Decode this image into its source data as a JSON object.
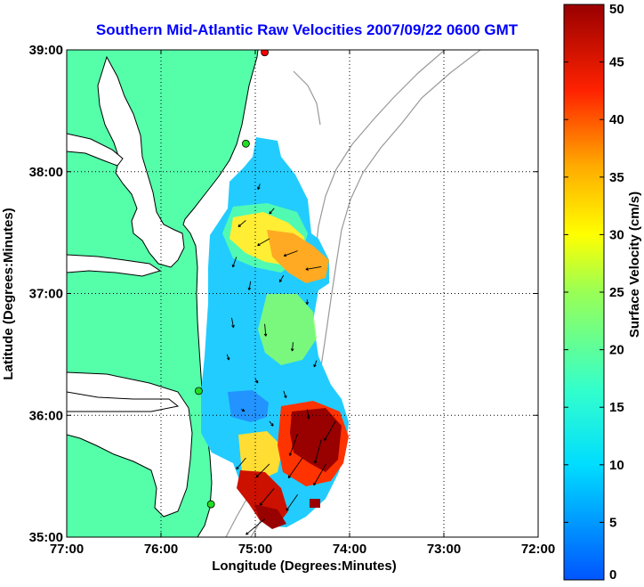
{
  "chart_data": [
    {
      "type": "heatmap",
      "title": "Southern Mid-Atlantic Raw Velocities 2007/09/22 0600 GMT",
      "xlabel": "Longitude (Degrees:Minutes)",
      "ylabel": "Latitude (Degrees:Minutes)",
      "xlim": [
        -77,
        -72
      ],
      "ylim": [
        35,
        39
      ],
      "x_ticks": [
        -77,
        -76,
        -75,
        -74,
        -73,
        -72
      ],
      "x_tick_labels": [
        "77:00",
        "76:00",
        "75:00",
        "74:00",
        "73:00",
        "72:00"
      ],
      "y_ticks": [
        35,
        36,
        37,
        38,
        39
      ],
      "y_tick_labels": [
        "35:00",
        "36:00",
        "37:00",
        "38:00",
        "39:00"
      ],
      "grid": true,
      "land_color": "#55ffaa",
      "contour_color": "#999999",
      "vector_color": "#000000",
      "stations": [
        {
          "lon": -74.9,
          "lat": 38.98,
          "color": "#ff0000"
        },
        {
          "lon": -75.1,
          "lat": 38.23,
          "color": "#22dd22"
        },
        {
          "lon": -75.6,
          "lat": 36.2,
          "color": "#22dd22"
        },
        {
          "lon": -75.47,
          "lat": 35.27,
          "color": "#22dd22"
        }
      ],
      "velocity_field": [
        {
          "lon": -74.95,
          "lat": 37.9,
          "speed": 12,
          "dir": 200
        },
        {
          "lon": -74.8,
          "lat": 37.7,
          "speed": 15,
          "dir": 220
        },
        {
          "lon": -75.1,
          "lat": 37.6,
          "speed": 20,
          "dir": 230
        },
        {
          "lon": -74.85,
          "lat": 37.45,
          "speed": 28,
          "dir": 240
        },
        {
          "lon": -74.55,
          "lat": 37.35,
          "speed": 30,
          "dir": 250
        },
        {
          "lon": -74.3,
          "lat": 37.22,
          "speed": 32,
          "dir": 260
        },
        {
          "lon": -75.2,
          "lat": 37.3,
          "speed": 22,
          "dir": 200
        },
        {
          "lon": -75.05,
          "lat": 37.1,
          "speed": 18,
          "dir": 190
        },
        {
          "lon": -74.7,
          "lat": 37.15,
          "speed": 16,
          "dir": 210
        },
        {
          "lon": -74.45,
          "lat": 36.95,
          "speed": 10,
          "dir": 180
        },
        {
          "lon": -75.25,
          "lat": 36.8,
          "speed": 20,
          "dir": 170
        },
        {
          "lon": -74.9,
          "lat": 36.75,
          "speed": 25,
          "dir": 175
        },
        {
          "lon": -74.6,
          "lat": 36.6,
          "speed": 18,
          "dir": 185
        },
        {
          "lon": -74.35,
          "lat": 36.45,
          "speed": 14,
          "dir": 200
        },
        {
          "lon": -75.3,
          "lat": 36.5,
          "speed": 12,
          "dir": 160
        },
        {
          "lon": -75.0,
          "lat": 36.3,
          "speed": 10,
          "dir": 150
        },
        {
          "lon": -74.7,
          "lat": 36.2,
          "speed": 15,
          "dir": 160
        },
        {
          "lon": -74.45,
          "lat": 36.05,
          "speed": 20,
          "dir": 170
        },
        {
          "lon": -75.15,
          "lat": 36.05,
          "speed": 8,
          "dir": 120
        },
        {
          "lon": -74.85,
          "lat": 35.95,
          "speed": 12,
          "dir": 140
        },
        {
          "lon": -74.55,
          "lat": 35.85,
          "speed": 48,
          "dir": 200
        },
        {
          "lon": -74.3,
          "lat": 35.8,
          "speed": 50,
          "dir": 195
        },
        {
          "lon": -74.15,
          "lat": 35.95,
          "speed": 45,
          "dir": 210
        },
        {
          "lon": -74.5,
          "lat": 35.65,
          "speed": 50,
          "dir": 215
        },
        {
          "lon": -74.25,
          "lat": 35.6,
          "speed": 50,
          "dir": 210
        },
        {
          "lon": -75.1,
          "lat": 35.65,
          "speed": 30,
          "dir": 220
        },
        {
          "lon": -74.85,
          "lat": 35.6,
          "speed": 38,
          "dir": 225
        },
        {
          "lon": -74.8,
          "lat": 35.4,
          "speed": 45,
          "dir": 220
        },
        {
          "lon": -74.55,
          "lat": 35.35,
          "speed": 40,
          "dir": 215
        },
        {
          "lon": -74.9,
          "lat": 35.15,
          "speed": 50,
          "dir": 230
        }
      ]
    },
    {
      "type": "colorbar",
      "label": "Surface Velocity (cm/s)",
      "ylim": [
        0,
        50
      ],
      "ticks": [
        0,
        5,
        10,
        15,
        20,
        25,
        30,
        35,
        40,
        45,
        50
      ],
      "tick_labels": [
        "0",
        "5",
        "10",
        "15",
        "20",
        "25",
        "30",
        "35",
        "40",
        "45",
        "50"
      ],
      "colormap": "jet"
    }
  ]
}
